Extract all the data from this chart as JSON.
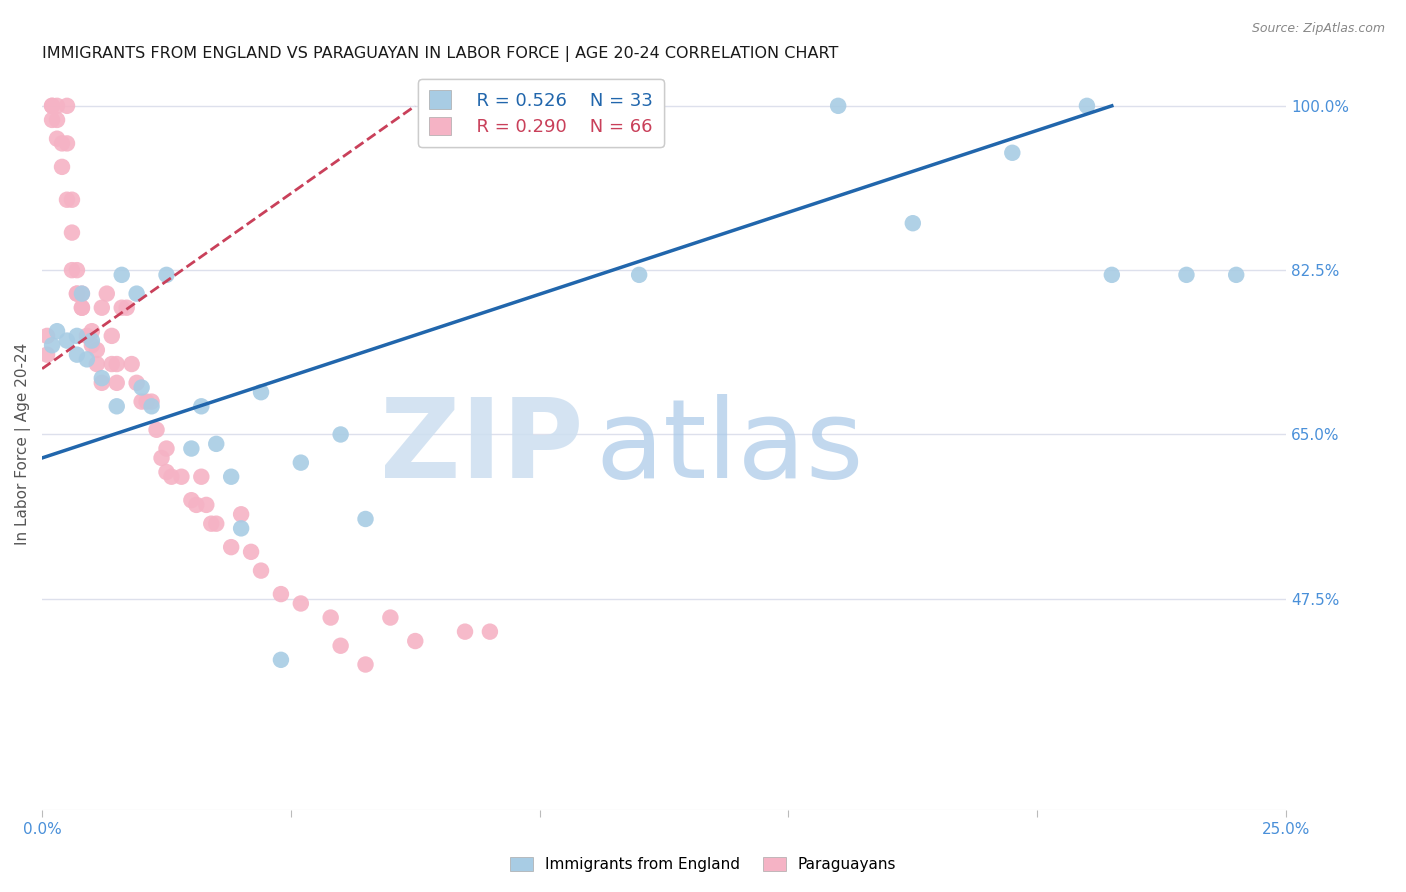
{
  "title": "IMMIGRANTS FROM ENGLAND VS PARAGUAYAN IN LABOR FORCE | AGE 20-24 CORRELATION CHART",
  "source": "Source: ZipAtlas.com",
  "ylabel": "In Labor Force | Age 20-24",
  "legend_blue_R": "R = 0.526",
  "legend_blue_N": "N = 33",
  "legend_pink_R": "R = 0.290",
  "legend_pink_N": "N = 66",
  "legend_label_blue": "Immigrants from England",
  "legend_label_pink": "Paraguayans",
  "xlim": [
    0.0,
    0.25
  ],
  "ylim": [
    0.25,
    1.03
  ],
  "ytick_vals": [
    0.475,
    0.65,
    0.825,
    1.0
  ],
  "ytick_labels": [
    "47.5%",
    "65.0%",
    "82.5%",
    "100.0%"
  ],
  "xtick_vals": [
    0.0,
    0.05,
    0.1,
    0.15,
    0.2,
    0.25
  ],
  "xtick_labels": [
    "0.0%",
    "",
    "",
    "",
    "",
    "25.0%"
  ],
  "blue_scatter_color": "#a8cce4",
  "pink_scatter_color": "#f5b3c5",
  "blue_line_color": "#2166ac",
  "pink_line_color": "#c9405a",
  "axis_tick_color": "#4a90d9",
  "title_color": "#1a1a1a",
  "grid_color": "#dde0ec",
  "bg_color": "#ffffff",
  "blue_x": [
    0.002,
    0.003,
    0.005,
    0.007,
    0.007,
    0.008,
    0.009,
    0.01,
    0.012,
    0.015,
    0.016,
    0.019,
    0.02,
    0.022,
    0.025,
    0.03,
    0.032,
    0.035,
    0.038,
    0.04,
    0.044,
    0.048,
    0.052,
    0.06,
    0.065,
    0.12,
    0.16,
    0.175,
    0.195,
    0.21,
    0.215,
    0.23,
    0.24
  ],
  "blue_y": [
    0.745,
    0.76,
    0.75,
    0.755,
    0.735,
    0.8,
    0.73,
    0.75,
    0.71,
    0.68,
    0.82,
    0.8,
    0.7,
    0.68,
    0.82,
    0.635,
    0.68,
    0.64,
    0.605,
    0.55,
    0.695,
    0.41,
    0.62,
    0.65,
    0.56,
    0.82,
    1.0,
    0.875,
    0.95,
    1.0,
    0.82,
    0.82,
    0.82
  ],
  "pink_x": [
    0.001,
    0.001,
    0.002,
    0.002,
    0.002,
    0.003,
    0.003,
    0.003,
    0.004,
    0.004,
    0.005,
    0.005,
    0.005,
    0.006,
    0.006,
    0.006,
    0.007,
    0.007,
    0.007,
    0.008,
    0.008,
    0.008,
    0.009,
    0.01,
    0.01,
    0.011,
    0.011,
    0.012,
    0.012,
    0.013,
    0.014,
    0.014,
    0.015,
    0.015,
    0.016,
    0.017,
    0.018,
    0.019,
    0.02,
    0.021,
    0.022,
    0.023,
    0.024,
    0.025,
    0.025,
    0.026,
    0.028,
    0.03,
    0.031,
    0.032,
    0.033,
    0.034,
    0.035,
    0.038,
    0.04,
    0.042,
    0.044,
    0.048,
    0.052,
    0.058,
    0.06,
    0.065,
    0.07,
    0.075,
    0.085,
    0.09
  ],
  "pink_y": [
    0.755,
    0.735,
    1.0,
    1.0,
    0.985,
    0.985,
    1.0,
    0.965,
    0.935,
    0.96,
    1.0,
    0.96,
    0.9,
    0.9,
    0.865,
    0.825,
    0.825,
    0.8,
    0.8,
    0.8,
    0.785,
    0.785,
    0.755,
    0.76,
    0.745,
    0.74,
    0.725,
    0.785,
    0.705,
    0.8,
    0.755,
    0.725,
    0.725,
    0.705,
    0.785,
    0.785,
    0.725,
    0.705,
    0.685,
    0.685,
    0.685,
    0.655,
    0.625,
    0.635,
    0.61,
    0.605,
    0.605,
    0.58,
    0.575,
    0.605,
    0.575,
    0.555,
    0.555,
    0.53,
    0.565,
    0.525,
    0.505,
    0.48,
    0.47,
    0.455,
    0.425,
    0.405,
    0.455,
    0.43,
    0.44,
    0.44
  ],
  "blue_trend_x": [
    0.0,
    0.215
  ],
  "blue_trend_y": [
    0.625,
    1.0
  ],
  "pink_trend_x": [
    0.0,
    0.075
  ],
  "pink_trend_y": [
    0.72,
    1.0
  ]
}
